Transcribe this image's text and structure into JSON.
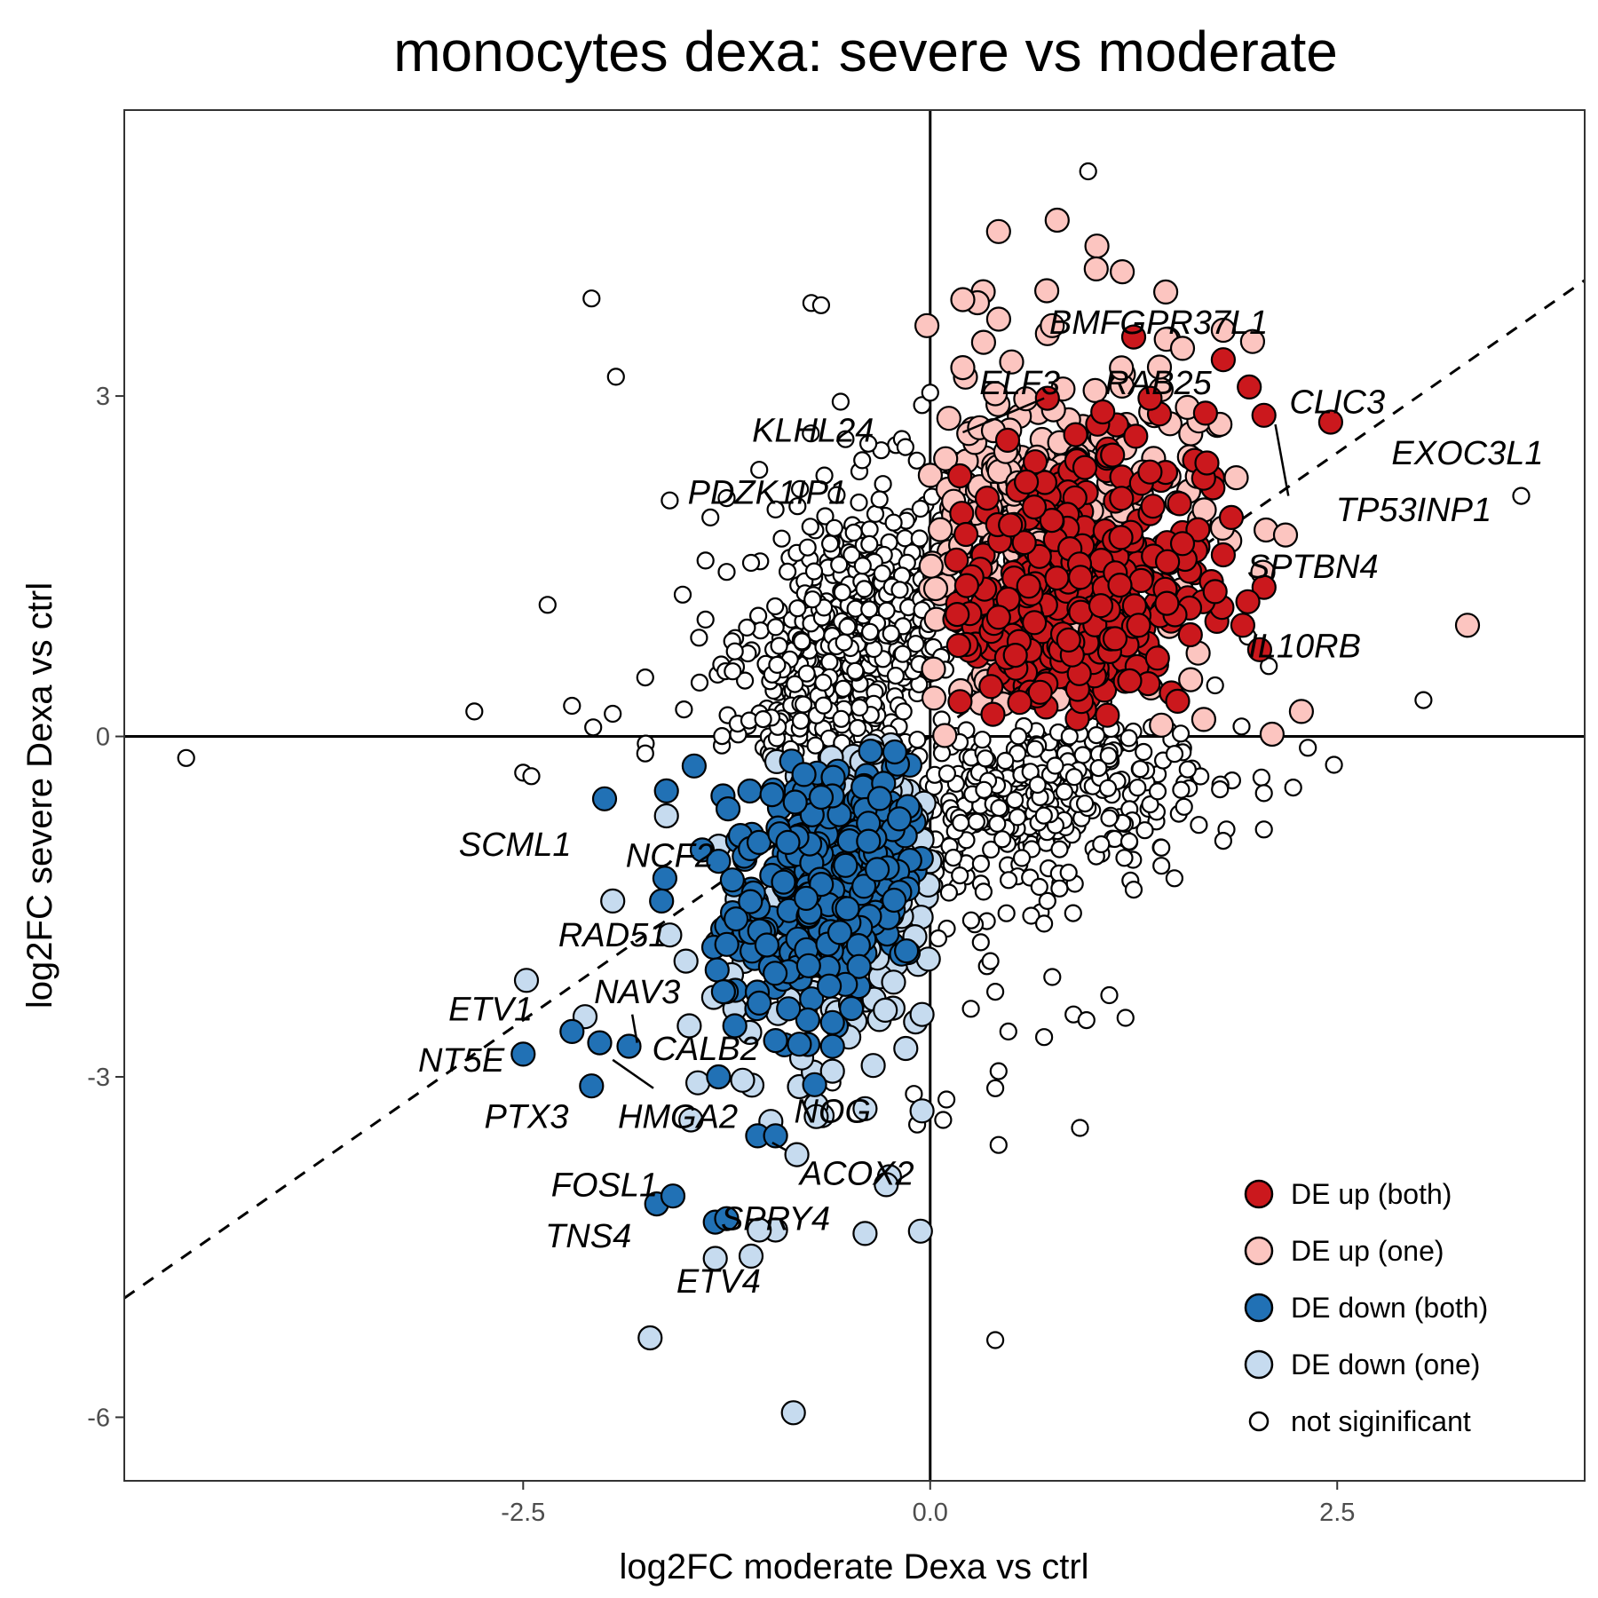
{
  "chart_data": {
    "type": "scatter",
    "title": "monocytes dexa: severe vs moderate",
    "xlabel": "log2FC moderate Dexa vs ctrl",
    "ylabel": "log2FC severe Dexa vs ctrl",
    "xlim": [
      -4.95,
      4.02
    ],
    "ylim": [
      -6.56,
      5.52
    ],
    "x_ticks": [
      -2.5,
      0.0,
      2.5
    ],
    "x_tick_labels": [
      "-2.5",
      "0.0",
      "2.5"
    ],
    "y_ticks": [
      -6,
      -3,
      0,
      3
    ],
    "y_tick_labels": [
      "-6",
      "-3",
      "0",
      "3"
    ],
    "grid": false,
    "reference_lines": {
      "hline_y": 0,
      "vline_x": 0,
      "diagonal": {
        "slope": 1,
        "intercept": 0,
        "style": "dashed"
      }
    },
    "legend": {
      "position": "bottom-right-inside",
      "entries": [
        {
          "key": "up_both",
          "label": "DE up (both)",
          "color": "#CB181D"
        },
        {
          "key": "up_one",
          "label": "DE up (one)",
          "color": "#FCC5C0"
        },
        {
          "key": "down_both",
          "label": "DE down (both)",
          "color": "#2171B5"
        },
        {
          "key": "down_one",
          "label": "DE down (one)",
          "color": "#C6DBEF"
        },
        {
          "key": "ns",
          "label": "not siginificant",
          "color": "#FFFFFF"
        }
      ]
    },
    "points": {
      "up_both": [
        [
          1.25,
          3.52
        ],
        [
          1.8,
          3.32
        ],
        [
          1.96,
          3.08
        ],
        [
          2.05,
          2.83
        ],
        [
          2.46,
          2.77
        ],
        [
          0.72,
          2.98
        ],
        [
          1.06,
          2.86
        ],
        [
          1.35,
          2.98
        ],
        [
          1.12,
          2.48
        ],
        [
          1.35,
          2.33
        ],
        [
          0.95,
          2.37
        ],
        [
          1.7,
          2.41
        ],
        [
          1.85,
          1.93
        ],
        [
          1.8,
          1.6
        ],
        [
          1.55,
          1.7
        ],
        [
          1.92,
          0.98
        ],
        [
          0.35,
          2.1
        ],
        [
          0.22,
          1.78
        ],
        [
          1.52,
          0.31
        ],
        [
          0.55,
          0.3
        ],
        [
          1.28,
          0.98
        ],
        [
          0.42,
          1.05
        ],
        [
          0.85,
          0.85
        ]
      ],
      "up_one": [
        [
          0.78,
          4.55
        ],
        [
          0.42,
          4.45
        ],
        [
          1.02,
          4.12
        ],
        [
          0.2,
          3.85
        ],
        [
          -0.02,
          3.62
        ],
        [
          0.72,
          3.55
        ],
        [
          0.75,
          3.62
        ],
        [
          1.45,
          3.5
        ],
        [
          1.8,
          3.58
        ],
        [
          1.98,
          3.48
        ],
        [
          1.55,
          3.42
        ],
        [
          0.2,
          3.25
        ],
        [
          0.5,
          3.3
        ],
        [
          0.4,
          3.02
        ],
        [
          1.65,
          2.78
        ],
        [
          1.58,
          2.9
        ],
        [
          1.78,
          2.75
        ],
        [
          1.88,
          2.28
        ],
        [
          3.3,
          0.98
        ],
        [
          2.28,
          0.22
        ],
        [
          2.1,
          0.02
        ],
        [
          1.6,
          0.5
        ],
        [
          1.68,
          0.15
        ],
        [
          1.42,
          0.1
        ]
      ],
      "down_both": [
        [
          -2.5,
          -2.8
        ],
        [
          -2.2,
          -2.6
        ],
        [
          -2.03,
          -2.7
        ],
        [
          -1.85,
          -2.73
        ],
        [
          -2.08,
          -3.08
        ],
        [
          -2.0,
          -0.55
        ],
        [
          -1.63,
          -1.25
        ],
        [
          -1.65,
          -1.45
        ],
        [
          -1.3,
          -3.0
        ],
        [
          -1.06,
          -3.52
        ],
        [
          -0.95,
          -3.52
        ],
        [
          -1.68,
          -4.12
        ],
        [
          -1.58,
          -4.05
        ],
        [
          -1.32,
          -4.28
        ],
        [
          -1.25,
          -4.25
        ],
        [
          -1.62,
          -0.48
        ],
        [
          -1.45,
          -0.26
        ],
        [
          -1.4,
          -1.0
        ],
        [
          -1.3,
          -1.1
        ],
        [
          -1.2,
          -2.55
        ],
        [
          -1.05,
          -2.35
        ],
        [
          -1.27,
          -2.25
        ],
        [
          -0.87,
          -2.4
        ],
        [
          -0.62,
          -2.2
        ],
        [
          -0.95,
          -2.68
        ]
      ],
      "down_one": [
        [
          -2.48,
          -2.15
        ],
        [
          -2.12,
          -2.47
        ],
        [
          -1.95,
          -1.45
        ],
        [
          -1.6,
          -1.75
        ],
        [
          -1.5,
          -1.98
        ],
        [
          -1.48,
          -2.55
        ],
        [
          -1.33,
          -2.3
        ],
        [
          -1.22,
          -2.1
        ],
        [
          -1.2,
          -2.4
        ],
        [
          -1.47,
          -3.38
        ],
        [
          -0.55,
          -2.6
        ],
        [
          -0.4,
          -3.28
        ],
        [
          -0.7,
          -3.25
        ],
        [
          -0.7,
          -3.35
        ],
        [
          -0.05,
          -3.3
        ],
        [
          -0.05,
          -2.45
        ],
        [
          -0.15,
          -2.75
        ],
        [
          -0.25,
          -3.88
        ],
        [
          -0.27,
          -3.95
        ],
        [
          -0.95,
          -4.35
        ],
        [
          -1.05,
          -4.35
        ],
        [
          -1.1,
          -4.58
        ],
        [
          -1.32,
          -4.6
        ],
        [
          -0.4,
          -4.38
        ],
        [
          -0.06,
          -4.36
        ],
        [
          -1.72,
          -5.3
        ],
        [
          -0.84,
          -5.96
        ],
        [
          -0.35,
          -2.9
        ],
        [
          -0.6,
          -2.95
        ],
        [
          -0.5,
          -2.65
        ],
        [
          -1.62,
          -0.7
        ]
      ],
      "ns": [
        [
          0.97,
          4.98
        ],
        [
          -2.08,
          3.86
        ],
        [
          -0.73,
          3.82
        ],
        [
          -0.67,
          3.8
        ],
        [
          -1.93,
          3.17
        ],
        [
          -2.35,
          1.16
        ],
        [
          -2.8,
          0.22
        ],
        [
          -4.57,
          -0.19
        ],
        [
          -2.5,
          -0.32
        ],
        [
          -2.2,
          0.27
        ],
        [
          -2.07,
          0.08
        ],
        [
          -1.95,
          0.2
        ],
        [
          -1.75,
          0.52
        ],
        [
          -1.52,
          1.25
        ],
        [
          -1.42,
          0.87
        ],
        [
          -1.38,
          1.03
        ],
        [
          -1.2,
          0.75
        ],
        [
          -1.38,
          1.55
        ],
        [
          -1.25,
          2.1
        ],
        [
          -1.35,
          1.93
        ],
        [
          -1.6,
          2.08
        ],
        [
          -1.25,
          1.45
        ],
        [
          -1.1,
          1.53
        ],
        [
          -0.95,
          2.0
        ],
        [
          -1.05,
          2.35
        ],
        [
          -0.8,
          2.18
        ],
        [
          -0.65,
          2.3
        ],
        [
          -0.55,
          2.95
        ],
        [
          -0.52,
          2.62
        ],
        [
          -0.38,
          2.58
        ],
        [
          -0.05,
          2.92
        ],
        [
          0.0,
          3.03
        ],
        [
          3.63,
          2.12
        ],
        [
          3.03,
          0.32
        ],
        [
          2.48,
          -0.25
        ],
        [
          2.32,
          -0.1
        ],
        [
          2.23,
          -0.45
        ],
        [
          2.05,
          -0.5
        ],
        [
          2.05,
          -0.82
        ],
        [
          1.82,
          -0.82
        ],
        [
          1.8,
          -0.92
        ],
        [
          1.65,
          -0.78
        ],
        [
          1.42,
          -0.98
        ],
        [
          1.1,
          -0.72
        ],
        [
          1.05,
          -0.95
        ],
        [
          1.42,
          -1.14
        ],
        [
          1.23,
          -1.27
        ],
        [
          1.25,
          -1.35
        ],
        [
          1.5,
          -1.25
        ],
        [
          0.72,
          -1.45
        ],
        [
          0.85,
          -1.2
        ],
        [
          0.62,
          -1.58
        ],
        [
          0.7,
          -1.65
        ],
        [
          0.37,
          -1.98
        ],
        [
          0.05,
          -1.78
        ],
        [
          0.4,
          -2.25
        ],
        [
          0.25,
          -2.4
        ],
        [
          1.1,
          -2.28
        ],
        [
          0.88,
          -2.45
        ],
        [
          0.96,
          -2.5
        ],
        [
          1.2,
          -2.48
        ],
        [
          0.75,
          -2.12
        ],
        [
          0.7,
          -2.65
        ],
        [
          0.48,
          -2.6
        ],
        [
          0.42,
          -2.95
        ],
        [
          0.4,
          -3.1
        ],
        [
          0.1,
          -3.2
        ],
        [
          -0.1,
          -3.15
        ],
        [
          -0.6,
          -3.05
        ],
        [
          0.92,
          -3.45
        ],
        [
          0.42,
          -3.6
        ],
        [
          0.4,
          -5.32
        ],
        [
          -0.08,
          -3.42
        ],
        [
          0.08,
          -3.38
        ],
        [
          -1.75,
          -0.15
        ],
        [
          -2.45,
          -0.35
        ],
        [
          1.75,
          0.45
        ],
        [
          1.95,
          0.88
        ],
        [
          2.08,
          0.62
        ]
      ]
    },
    "clusters": [
      {
        "group": "ns",
        "n": 520,
        "cx": -0.55,
        "cy": 0.55,
        "sx": 0.42,
        "sy": 0.85,
        "rho": 0.55,
        "xmax": 0.1,
        "ymin": -0.2
      },
      {
        "group": "ns",
        "n": 320,
        "cx": 0.6,
        "cy": -0.55,
        "sx": 0.55,
        "sy": 0.5,
        "rho": 0.5,
        "xmin": -0.05,
        "ymax": 0.1
      },
      {
        "group": "up_one",
        "n": 260,
        "cx": 0.55,
        "cy": 1.6,
        "sx": 0.55,
        "sy": 0.9,
        "rho": 0.2,
        "xmin": 0.0,
        "ymin": 0.0
      },
      {
        "group": "up_both",
        "n": 360,
        "cx": 0.85,
        "cy": 1.2,
        "sx": 0.42,
        "sy": 0.72,
        "rho": 0.15,
        "xmin": 0.15,
        "ymin": 0.15
      },
      {
        "group": "down_one",
        "n": 200,
        "cx": -0.45,
        "cy": -1.3,
        "sx": 0.35,
        "sy": 0.75,
        "rho": 0.4,
        "xmax": 0.0,
        "ymax": 0.0
      },
      {
        "group": "down_both",
        "n": 330,
        "cx": -0.65,
        "cy": -1.3,
        "sx": 0.3,
        "sy": 0.62,
        "rho": 0.35,
        "xmax": -0.05,
        "ymax": -0.1
      }
    ],
    "labels": [
      {
        "text": "BMF",
        "x": 0.95,
        "y": 3.65
      },
      {
        "text": "GPR37L1",
        "x": 1.62,
        "y": 3.65
      },
      {
        "text": "ELF3",
        "x": 0.55,
        "y": 3.12
      },
      {
        "text": "RAB25",
        "x": 1.4,
        "y": 3.12
      },
      {
        "text": "CLIC3",
        "x": 2.5,
        "y": 2.95
      },
      {
        "text": "KLHL24",
        "x": -0.72,
        "y": 2.7
      },
      {
        "text": "EXOC3L1",
        "x": 3.3,
        "y": 2.5
      },
      {
        "text": "PDZK1IP1",
        "x": -1.0,
        "y": 2.15
      },
      {
        "text": "TP53INP1",
        "x": 2.97,
        "y": 2.0
      },
      {
        "text": "SPTBN4",
        "x": 2.35,
        "y": 1.5
      },
      {
        "text": "IL10RB",
        "x": 2.3,
        "y": 0.8
      },
      {
        "text": "SCML1",
        "x": -2.55,
        "y": -0.95
      },
      {
        "text": "NCF2",
        "x": -1.6,
        "y": -1.05
      },
      {
        "text": "RAD51",
        "x": -1.95,
        "y": -1.75
      },
      {
        "text": "ETV1",
        "x": -2.7,
        "y": -2.4
      },
      {
        "text": "NAV3",
        "x": -1.8,
        "y": -2.25
      },
      {
        "text": "CALB2",
        "x": -1.38,
        "y": -2.75
      },
      {
        "text": "NT5E",
        "x": -2.88,
        "y": -2.85
      },
      {
        "text": "NOG",
        "x": -0.6,
        "y": -3.3
      },
      {
        "text": "PTX3",
        "x": -2.48,
        "y": -3.35
      },
      {
        "text": "HMGA2",
        "x": -1.55,
        "y": -3.35
      },
      {
        "text": "ACOX2",
        "x": -0.45,
        "y": -3.85
      },
      {
        "text": "FOSL1",
        "x": -2.0,
        "y": -3.95
      },
      {
        "text": "SPRY4",
        "x": -0.95,
        "y": -4.25
      },
      {
        "text": "TNS4",
        "x": -2.1,
        "y": -4.4
      },
      {
        "text": "ETV4",
        "x": -1.3,
        "y": -4.8
      }
    ],
    "label_segments": [
      [
        [
          2.12,
          2.75
        ],
        [
          2.2,
          2.12
        ]
      ],
      [
        [
          -1.83,
          -2.45
        ],
        [
          -1.8,
          -2.7
        ]
      ],
      [
        [
          -1.95,
          -2.85
        ],
        [
          -1.7,
          -3.1
        ]
      ],
      [
        [
          -0.97,
          -3.58
        ],
        [
          -0.88,
          -3.65
        ]
      ],
      [
        [
          0.2,
          2.68
        ],
        [
          0.7,
          2.98
        ]
      ]
    ]
  }
}
